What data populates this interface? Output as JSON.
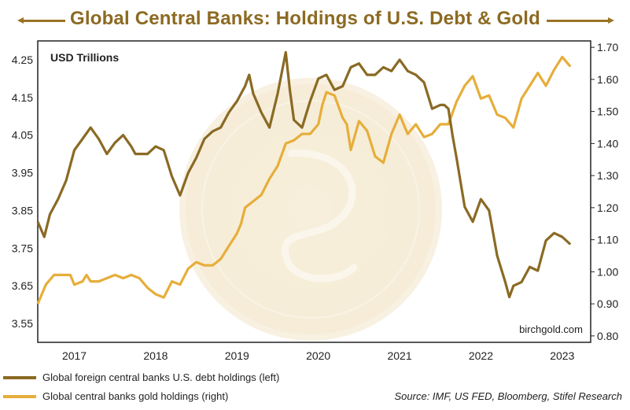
{
  "title": "Global Central Banks: Holdings of U.S. Debt & Gold",
  "colors": {
    "debt": "#8a6a24",
    "gold": "#e6ae3a",
    "title": "#8c6a22",
    "frame": "#222222"
  },
  "chart_data": {
    "type": "line",
    "unit_label": "USD Trillions",
    "watermark": "birchgold.com",
    "x_tick_labels": [
      "2017",
      "2018",
      "2019",
      "2020",
      "2021",
      "2022",
      "2023"
    ],
    "x_tick_values": [
      2017,
      2018,
      2019,
      2020,
      2021,
      2022,
      2023
    ],
    "xlim": [
      2016.55,
      2023.35
    ],
    "ylim_left": [
      3.5,
      4.3
    ],
    "ylim_right": [
      0.78,
      1.72
    ],
    "y_ticks_left": [
      "3.55",
      "3.65",
      "3.75",
      "3.85",
      "3.95",
      "4.05",
      "4.15",
      "4.25"
    ],
    "y_tick_values_left": [
      3.55,
      3.65,
      3.75,
      3.85,
      3.95,
      4.05,
      4.15,
      4.25
    ],
    "y_ticks_right": [
      "0.80",
      "0.90",
      "1.00",
      "1.10",
      "1.20",
      "1.30",
      "1.40",
      "1.50",
      "1.60",
      "1.70"
    ],
    "y_tick_values_right": [
      0.8,
      0.9,
      1.0,
      1.1,
      1.2,
      1.3,
      1.4,
      1.5,
      1.6,
      1.7
    ],
    "grid": false,
    "legend_position": "bottom-left",
    "series": [
      {
        "name": "Global foreign central banks U.S. debt holdings (left)",
        "axis": "left",
        "x": [
          2016.55,
          2016.63,
          2016.7,
          2016.8,
          2016.9,
          2017.0,
          2017.1,
          2017.2,
          2017.3,
          2017.4,
          2017.5,
          2017.6,
          2017.7,
          2017.75,
          2017.8,
          2017.9,
          2018.0,
          2018.1,
          2018.2,
          2018.3,
          2018.4,
          2018.5,
          2018.6,
          2018.7,
          2018.8,
          2018.9,
          2019.0,
          2019.1,
          2019.15,
          2019.2,
          2019.3,
          2019.4,
          2019.5,
          2019.6,
          2019.65,
          2019.7,
          2019.8,
          2019.9,
          2020.0,
          2020.1,
          2020.2,
          2020.3,
          2020.4,
          2020.5,
          2020.6,
          2020.7,
          2020.8,
          2020.9,
          2021.0,
          2021.1,
          2021.2,
          2021.3,
          2021.4,
          2021.5,
          2021.55,
          2021.6,
          2021.65,
          2021.7,
          2021.8,
          2021.9,
          2022.0,
          2022.1,
          2022.2,
          2022.3,
          2022.35,
          2022.4,
          2022.5,
          2022.6,
          2022.7,
          2022.8,
          2022.9,
          2023.0,
          2023.1
        ],
        "values": [
          3.82,
          3.78,
          3.84,
          3.88,
          3.93,
          4.01,
          4.04,
          4.07,
          4.04,
          4.0,
          4.03,
          4.05,
          4.02,
          4.0,
          4.0,
          4.0,
          4.02,
          4.01,
          3.94,
          3.89,
          3.95,
          3.99,
          4.04,
          4.06,
          4.07,
          4.11,
          4.14,
          4.18,
          4.21,
          4.16,
          4.11,
          4.07,
          4.16,
          4.27,
          4.17,
          4.09,
          4.07,
          4.14,
          4.2,
          4.21,
          4.17,
          4.18,
          4.23,
          4.24,
          4.21,
          4.21,
          4.23,
          4.22,
          4.25,
          4.22,
          4.21,
          4.19,
          4.12,
          4.13,
          4.13,
          4.12,
          4.05,
          3.99,
          3.86,
          3.82,
          3.88,
          3.85,
          3.73,
          3.66,
          3.62,
          3.65,
          3.66,
          3.7,
          3.69,
          3.77,
          3.79,
          3.78,
          3.76
        ]
      },
      {
        "name": "Global central banks gold holdings (right)",
        "axis": "right",
        "x": [
          2016.55,
          2016.65,
          2016.75,
          2016.85,
          2016.95,
          2017.0,
          2017.1,
          2017.15,
          2017.2,
          2017.3,
          2017.4,
          2017.5,
          2017.6,
          2017.7,
          2017.8,
          2017.9,
          2018.0,
          2018.1,
          2018.2,
          2018.3,
          2018.4,
          2018.5,
          2018.6,
          2018.7,
          2018.8,
          2018.9,
          2019.0,
          2019.05,
          2019.1,
          2019.2,
          2019.3,
          2019.4,
          2019.5,
          2019.6,
          2019.7,
          2019.8,
          2019.9,
          2020.0,
          2020.05,
          2020.1,
          2020.2,
          2020.3,
          2020.35,
          2020.4,
          2020.5,
          2020.6,
          2020.7,
          2020.8,
          2020.9,
          2021.0,
          2021.1,
          2021.2,
          2021.3,
          2021.4,
          2021.5,
          2021.6,
          2021.7,
          2021.8,
          2021.9,
          2022.0,
          2022.1,
          2022.2,
          2022.3,
          2022.4,
          2022.5,
          2022.6,
          2022.7,
          2022.8,
          2022.9,
          2023.0,
          2023.1
        ],
        "values": [
          0.9,
          0.96,
          0.99,
          0.99,
          0.99,
          0.96,
          0.97,
          0.99,
          0.97,
          0.97,
          0.98,
          0.99,
          0.98,
          0.99,
          0.98,
          0.95,
          0.93,
          0.92,
          0.97,
          0.96,
          1.01,
          1.03,
          1.02,
          1.02,
          1.04,
          1.08,
          1.12,
          1.15,
          1.2,
          1.22,
          1.24,
          1.29,
          1.33,
          1.4,
          1.41,
          1.43,
          1.43,
          1.46,
          1.52,
          1.56,
          1.55,
          1.48,
          1.46,
          1.38,
          1.47,
          1.44,
          1.36,
          1.34,
          1.43,
          1.49,
          1.43,
          1.46,
          1.42,
          1.43,
          1.46,
          1.46,
          1.53,
          1.58,
          1.61,
          1.54,
          1.55,
          1.49,
          1.48,
          1.45,
          1.54,
          1.58,
          1.62,
          1.58,
          1.63,
          1.67,
          1.64
        ]
      }
    ]
  },
  "legend": {
    "series_a": "Global foreign central banks U.S. debt holdings (left)",
    "series_b": "Global central banks gold holdings (right)"
  },
  "source": "Source: IMF, US FED, Bloomberg, Stifel Research"
}
